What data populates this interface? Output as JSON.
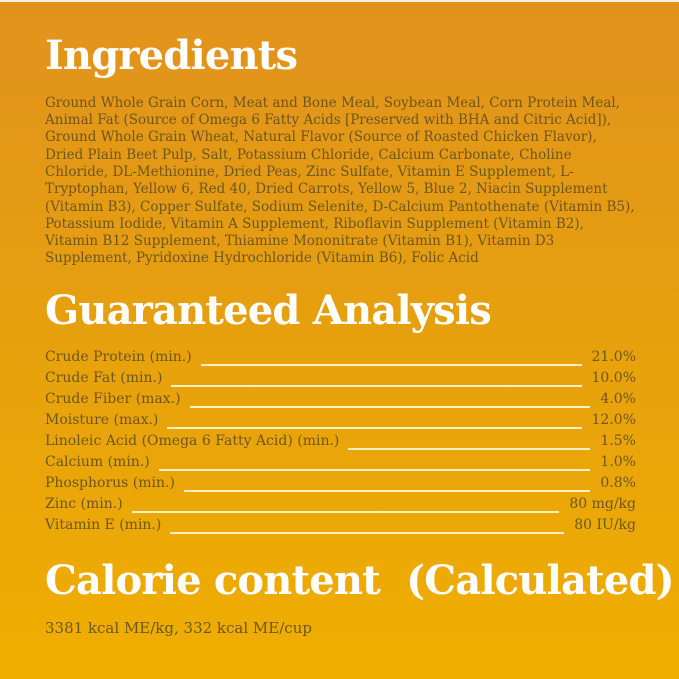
{
  "colors": {
    "background_top": "#e1921d",
    "background_mid": "#e7a20c",
    "background_bottom": "#f0ae00",
    "heading_text": "#ffffff",
    "body_text": "#6d571d",
    "leader_line": "#f9efc9"
  },
  "ingredients": {
    "title": "Ingredients",
    "text": "Ground Whole Grain Corn, Meat and Bone Meal, Soybean Meal, Corn Protein Meal, Animal Fat (Source of Omega 6 Fatty Acids [Preserved with BHA and Citric Acid]), Ground Whole Grain Wheat, Natural Flavor (Source of Roasted Chicken Flavor), Dried Plain Beet Pulp, Salt, Potassium Chloride, Calcium Carbonate, Choline Chloride, DL-Methionine, Dried Peas, Zinc Sulfate, Vitamin E Supplement, L-Tryptophan, Yellow 6, Red 40, Dried Carrots, Yellow 5, Blue 2, Niacin Supplement (Vitamin B3), Copper Sulfate, Sodium Selenite, D-Calcium Pantothenate (Vitamin B5), Potassium Iodide, Vitamin A Supplement, Riboflavin Supplement (Vitamin B2), Vitamin B12 Supplement, Thiamine Mononitrate (Vitamin B1), Vitamin D3 Supplement, Pyridoxine Hydrochloride (Vitamin B6), Folic Acid"
  },
  "guaranteed_analysis": {
    "title": "Guaranteed Analysis",
    "rows": [
      {
        "label": "Crude Protein (min.)",
        "value": "21.0%"
      },
      {
        "label": "Crude Fat (min.)",
        "value": "10.0%"
      },
      {
        "label": "Crude Fiber (max.)",
        "value": "4.0%"
      },
      {
        "label": "Moisture (max.)",
        "value": "12.0%"
      },
      {
        "label": "Linoleic Acid (Omega 6 Fatty Acid) (min.)",
        "value": "1.5%"
      },
      {
        "label": "Calcium (min.)",
        "value": "1.0%"
      },
      {
        "label": "Phosphorus (min.)",
        "value": "0.8%"
      },
      {
        "label": "Zinc (min.)",
        "value": "80 mg/kg"
      },
      {
        "label": "Vitamin E (min.)",
        "value": "80 IU/kg"
      }
    ]
  },
  "calorie_content": {
    "title": "Calorie content  (Calculated)",
    "text": "3381 kcal ME/kg, 332 kcal ME/cup"
  }
}
